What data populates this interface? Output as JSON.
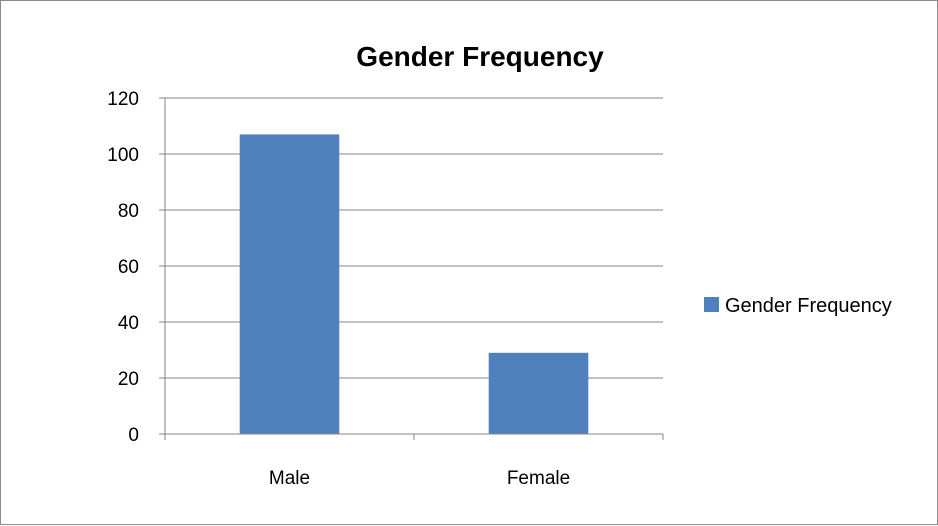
{
  "chart_data": {
    "type": "bar",
    "title": "Gender Frequency",
    "categories": [
      "Male",
      "Female"
    ],
    "series": [
      {
        "name": "Gender Frequency",
        "values": [
          107,
          29
        ]
      }
    ],
    "xlabel": "",
    "ylabel": "",
    "ylim": [
      0,
      120
    ],
    "yticks": [
      0,
      20,
      40,
      60,
      80,
      100,
      120
    ],
    "grid": true,
    "legend": "right",
    "colors": {
      "bar": "#4f81bd",
      "grid": "#868686",
      "axis": "#868686"
    }
  }
}
